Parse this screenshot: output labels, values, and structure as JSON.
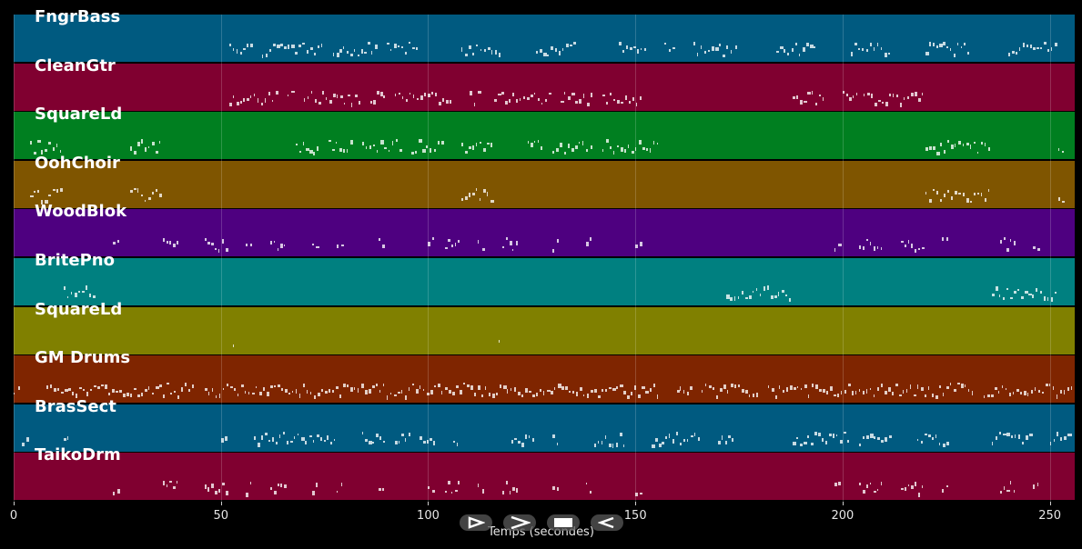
{
  "tracks": [
    {
      "name": "FngrBass",
      "color": "#005a80"
    },
    {
      "name": "CleanGtr",
      "color": "#800030"
    },
    {
      "name": "SquareLd",
      "color": "#007f20"
    },
    {
      "name": "OohChoir",
      "color": "#7f5500"
    },
    {
      "name": "WoodBlok",
      "color": "#4e0080"
    },
    {
      "name": "BritePno",
      "color": "#008080"
    },
    {
      "name": "SquareLd",
      "color": "#808000"
    },
    {
      "name": "GM Drums",
      "color": "#7f2500"
    },
    {
      "name": "BrasSect",
      "color": "#005a80"
    },
    {
      "name": "TaikoDrm",
      "color": "#800030"
    }
  ],
  "axis": {
    "ticks": [
      "0",
      "50",
      "100",
      "150",
      "200",
      "250"
    ],
    "tick_values": [
      0,
      50,
      100,
      150,
      200,
      250
    ],
    "max_seconds": 256,
    "label": "Temps (secondes)"
  },
  "controls": [
    {
      "name": "play-button",
      "icon": "play-outline-icon"
    },
    {
      "name": "forward-button",
      "icon": "chevron-right-icon"
    },
    {
      "name": "stop-button",
      "icon": "stop-icon"
    },
    {
      "name": "rewind-button",
      "icon": "rewind-icon"
    }
  ],
  "notes": {
    "0": [
      [
        52,
        58
      ],
      [
        60,
        75
      ],
      [
        77,
        88
      ],
      [
        90,
        98
      ],
      [
        108,
        118
      ],
      [
        126,
        136
      ],
      [
        146,
        153
      ],
      [
        157,
        160
      ],
      [
        164,
        172
      ],
      [
        172,
        175
      ],
      [
        184,
        194
      ],
      [
        202,
        212
      ],
      [
        220,
        231
      ],
      [
        240,
        252
      ]
    ],
    "1": [
      [
        52,
        64
      ],
      [
        66,
        68
      ],
      [
        70,
        84
      ],
      [
        86,
        90
      ],
      [
        92,
        106
      ],
      [
        110,
        113
      ],
      [
        116,
        130
      ],
      [
        132,
        140
      ],
      [
        142,
        152
      ],
      [
        188,
        196
      ],
      [
        200,
        204
      ],
      [
        205,
        220
      ]
    ],
    "2": [
      [
        4,
        12
      ],
      [
        28,
        36
      ],
      [
        68,
        74
      ],
      [
        76,
        82
      ],
      [
        84,
        94
      ],
      [
        96,
        104
      ],
      [
        108,
        116
      ],
      [
        124,
        128
      ],
      [
        130,
        140
      ],
      [
        142,
        156
      ],
      [
        220,
        236
      ],
      [
        252,
        254
      ]
    ],
    "3": [
      [
        4,
        12
      ],
      [
        28,
        36
      ],
      [
        108,
        116
      ],
      [
        220,
        236
      ],
      [
        252,
        254
      ]
    ],
    "4": [
      [
        24,
        26
      ],
      [
        36,
        40
      ],
      [
        46,
        52
      ],
      [
        56,
        58
      ],
      [
        62,
        66
      ],
      [
        72,
        74
      ],
      [
        78,
        80
      ],
      [
        88,
        90
      ],
      [
        100,
        102
      ],
      [
        104,
        108
      ],
      [
        112,
        114
      ],
      [
        118,
        122
      ],
      [
        130,
        132
      ],
      [
        138,
        140
      ],
      [
        150,
        152
      ],
      [
        198,
        200
      ],
      [
        204,
        210
      ],
      [
        214,
        220
      ],
      [
        224,
        226
      ],
      [
        238,
        242
      ],
      [
        246,
        248
      ]
    ],
    "5": [
      [
        12,
        20
      ],
      [
        172,
        188
      ],
      [
        236,
        252
      ]
    ],
    "6": [
      [
        53,
        54
      ],
      [
        117,
        118
      ]
    ],
    "7": [
      [
        0,
        2
      ],
      [
        8,
        44
      ],
      [
        46,
        112
      ],
      [
        112,
        156
      ],
      [
        160,
        164
      ],
      [
        166,
        180
      ],
      [
        182,
        232
      ],
      [
        234,
        256
      ]
    ],
    "8": [
      [
        2,
        4
      ],
      [
        12,
        14
      ],
      [
        50,
        52
      ],
      [
        58,
        64
      ],
      [
        64,
        74
      ],
      [
        74,
        78
      ],
      [
        84,
        90
      ],
      [
        92,
        96
      ],
      [
        98,
        102
      ],
      [
        106,
        108
      ],
      [
        120,
        126
      ],
      [
        130,
        132
      ],
      [
        140,
        148
      ],
      [
        154,
        158
      ],
      [
        158,
        166
      ],
      [
        170,
        174
      ],
      [
        188,
        202
      ],
      [
        204,
        212
      ],
      [
        218,
        226
      ],
      [
        236,
        246
      ],
      [
        250,
        256
      ]
    ],
    "9": [
      [
        24,
        26
      ],
      [
        36,
        40
      ],
      [
        46,
        52
      ],
      [
        56,
        58
      ],
      [
        62,
        66
      ],
      [
        72,
        74
      ],
      [
        78,
        80
      ],
      [
        88,
        90
      ],
      [
        100,
        102
      ],
      [
        104,
        108
      ],
      [
        112,
        114
      ],
      [
        118,
        122
      ],
      [
        130,
        132
      ],
      [
        138,
        140
      ],
      [
        150,
        152
      ],
      [
        198,
        200
      ],
      [
        204,
        210
      ],
      [
        214,
        220
      ],
      [
        224,
        226
      ],
      [
        238,
        242
      ],
      [
        246,
        248
      ]
    ]
  }
}
